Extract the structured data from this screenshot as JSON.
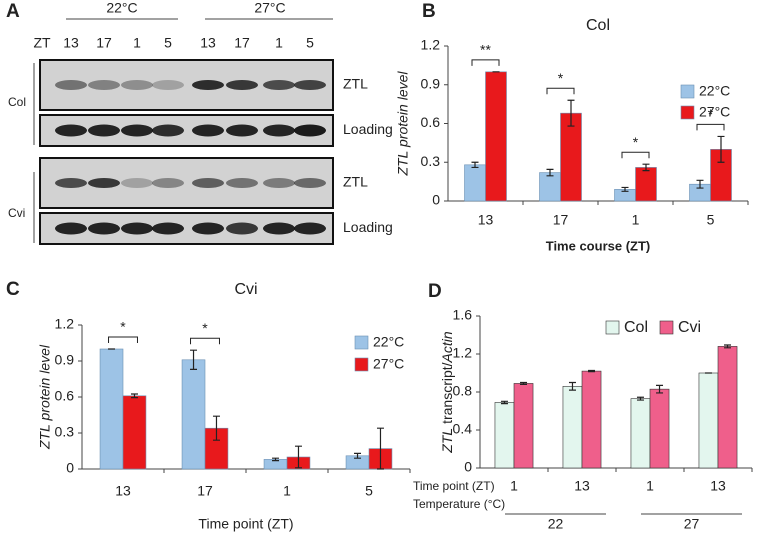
{
  "blot": {
    "panel": "A",
    "zt_label": "ZT",
    "temperatures": [
      "22°C",
      "27°C"
    ],
    "lanes": [
      "13",
      "17",
      "1",
      "5",
      "13",
      "17",
      "1",
      "5"
    ],
    "genotypes": [
      {
        "name": "Col",
        "rows": [
          "ZTL",
          "Loading"
        ]
      },
      {
        "name": "Cvi",
        "rows": [
          "ZTL",
          "Loading"
        ]
      }
    ]
  },
  "chart_data": [
    {
      "type": "bar",
      "panel": "B",
      "title": "Col",
      "xlabel": "Time course (ZT)",
      "ylabel": "ZTL protein level",
      "categories": [
        "13",
        "17",
        "1",
        "5"
      ],
      "series": [
        {
          "name": "22°C",
          "color": "#9dc3e6",
          "values": [
            0.28,
            0.22,
            0.09,
            0.13
          ],
          "errors": [
            0.02,
            0.025,
            0.015,
            0.03
          ]
        },
        {
          "name": "27°C",
          "color": "#e8191c",
          "values": [
            1.0,
            0.68,
            0.26,
            0.4
          ],
          "errors": [
            0,
            0.1,
            0.025,
            0.1
          ]
        }
      ],
      "annotations": [
        "**",
        "*",
        "*",
        "*"
      ],
      "ylim": [
        0,
        1.2
      ],
      "yticks": [
        0,
        0.3,
        0.6,
        0.9,
        1.2
      ],
      "legend": "upper right"
    },
    {
      "type": "bar",
      "panel": "C",
      "title": "Cvi",
      "xlabel": "Time point (ZT)",
      "ylabel": "ZTL protein level",
      "categories": [
        "13",
        "17",
        "1",
        "5"
      ],
      "series": [
        {
          "name": "22°C",
          "color": "#9dc3e6",
          "values": [
            1.0,
            0.91,
            0.08,
            0.11
          ],
          "errors": [
            0,
            0.08,
            0.01,
            0.02
          ]
        },
        {
          "name": "27°C",
          "color": "#e8191c",
          "values": [
            0.61,
            0.34,
            0.1,
            0.17
          ],
          "errors": [
            0.015,
            0.1,
            0.09,
            0.17
          ]
        }
      ],
      "annotations": [
        "*",
        "*",
        null,
        null
      ],
      "ylim": [
        0,
        1.2
      ],
      "yticks": [
        0,
        0.3,
        0.6,
        0.9,
        1.2
      ],
      "legend": "upper right"
    },
    {
      "type": "bar",
      "panel": "D",
      "ylabel_parts": [
        "ZTL",
        " transcript/",
        "Actin"
      ],
      "categories": [
        "1",
        "13",
        "1",
        "13"
      ],
      "group_labels": [
        "22",
        "27"
      ],
      "x_row_labels": [
        "Time point (ZT)",
        "Temperature (°C)"
      ],
      "series": [
        {
          "name": "Col",
          "color": "#e3f6ee",
          "values": [
            0.69,
            0.86,
            0.73,
            1.0
          ],
          "errors": [
            0.012,
            0.04,
            0.015,
            0
          ]
        },
        {
          "name": "Cvi",
          "color": "#ef5f8b",
          "values": [
            0.89,
            1.02,
            0.83,
            1.28
          ],
          "errors": [
            0.01,
            0.006,
            0.04,
            0.015
          ]
        }
      ],
      "ylim": [
        0,
        1.6
      ],
      "yticks": [
        0,
        0.4,
        0.8,
        1.2,
        1.6
      ],
      "legend": "top"
    }
  ]
}
